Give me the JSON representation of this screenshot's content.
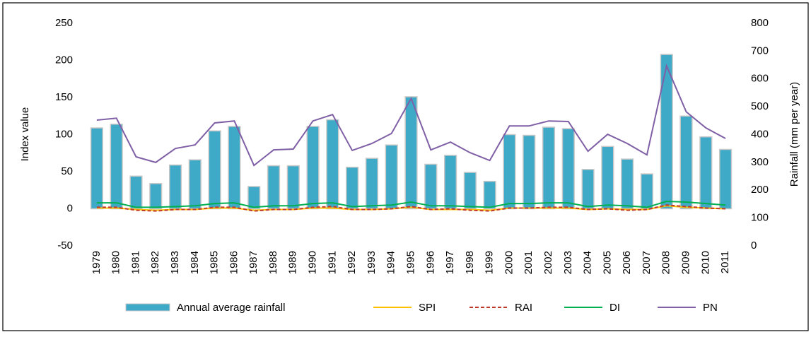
{
  "chart_data": {
    "type": "combo",
    "y_label": "Index value",
    "y2_label": "Rainfall (mm per year)",
    "categories": [
      "1979",
      "1980",
      "1981",
      "1982",
      "1983",
      "1984",
      "1985",
      "1986",
      "1987",
      "1988",
      "1989",
      "1990",
      "1991",
      "1992",
      "1993",
      "1994",
      "1995",
      "1996",
      "1997",
      "1998",
      "1999",
      "2000",
      "2001",
      "2002",
      "2003",
      "2004",
      "2005",
      "2006",
      "2007",
      "2008",
      "2009",
      "2010",
      "2011"
    ],
    "ylim": [
      -50,
      250
    ],
    "yticks": [
      -50,
      0,
      50,
      100,
      150,
      200,
      250
    ],
    "y2lim": [
      0,
      800
    ],
    "y2ticks": [
      0,
      100,
      200,
      300,
      400,
      500,
      600,
      700,
      800
    ],
    "grid": false,
    "series": [
      {
        "name": "Annual average rainfall",
        "type": "bar",
        "color": "#3eaac8",
        "values": [
          109,
          114,
          44,
          34,
          59,
          66,
          105,
          111,
          30,
          58,
          58,
          111,
          120,
          56,
          68,
          86,
          151,
          60,
          72,
          49,
          37,
          100,
          99,
          110,
          108,
          53,
          84,
          67,
          47,
          208,
          125,
          97,
          80
        ]
      },
      {
        "name": "SPI",
        "type": "line",
        "color": "#ffc000",
        "dashed": false,
        "values": [
          1,
          1,
          -1,
          -2,
          -1,
          -1,
          1,
          1,
          -2,
          -1,
          -1,
          1,
          1,
          -1,
          -1,
          0,
          2,
          -1,
          -1,
          -1,
          -2,
          1,
          1,
          1,
          1,
          -1,
          0,
          -1,
          -1,
          4,
          2,
          1,
          0
        ]
      },
      {
        "name": "RAI",
        "type": "line",
        "color": "#c0392b",
        "dashed": true,
        "values": [
          2,
          2,
          -2,
          -3,
          -1,
          -1,
          2,
          2,
          -3,
          -1,
          -1,
          2,
          3,
          -1,
          -1,
          0,
          3,
          -1,
          0,
          -2,
          -3,
          1,
          1,
          2,
          2,
          -1,
          0,
          -2,
          -1,
          5,
          3,
          1,
          0
        ]
      },
      {
        "name": "DI",
        "type": "line",
        "color": "#00b050",
        "dashed": false,
        "values": [
          8,
          8,
          2,
          2,
          3,
          4,
          7,
          8,
          2,
          4,
          4,
          7,
          8,
          3,
          4,
          5,
          9,
          4,
          4,
          3,
          2,
          7,
          7,
          8,
          8,
          3,
          5,
          4,
          2,
          10,
          9,
          7,
          5
        ]
      },
      {
        "name": "PN",
        "type": "line",
        "color": "#7f5fa5",
        "dashed": false,
        "axis": "y2",
        "values": [
          452,
          459,
          320,
          300,
          350,
          363,
          442,
          449,
          289,
          345,
          348,
          449,
          472,
          343,
          368,
          404,
          530,
          345,
          373,
          335,
          307,
          431,
          431,
          449,
          447,
          340,
          401,
          368,
          327,
          647,
          482,
          424,
          386
        ]
      }
    ]
  }
}
